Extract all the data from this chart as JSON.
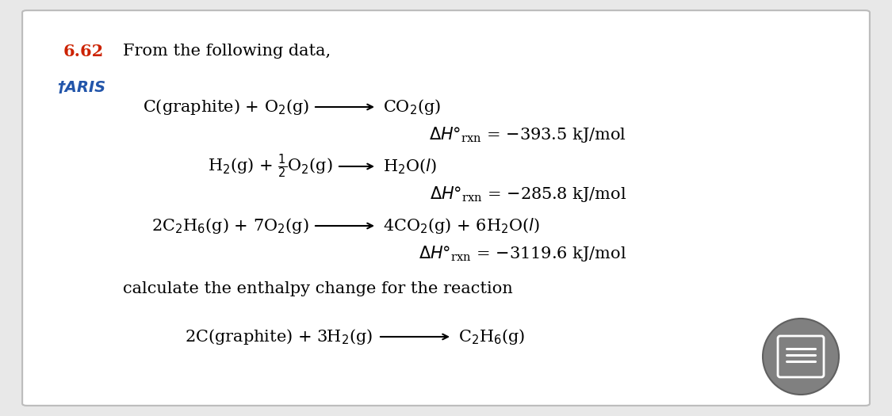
{
  "background_color": "#e8e8e8",
  "panel_color": "#ffffff",
  "problem_number": "6.62",
  "problem_number_color": "#cc2200",
  "header_text": "From the following data,",
  "aris_color": "#2255aa",
  "rxn1_dH_val": "−393.5 kJ/mol",
  "rxn2_dH_val": "−285.8 kJ/mol",
  "rxn3_dH_val": "−3119.6 kJ/mol",
  "calc_text": "calculate the enthalpy change for the reaction",
  "icon_color": "#888888",
  "fontsize_main": 15,
  "fontsize_header": 15
}
